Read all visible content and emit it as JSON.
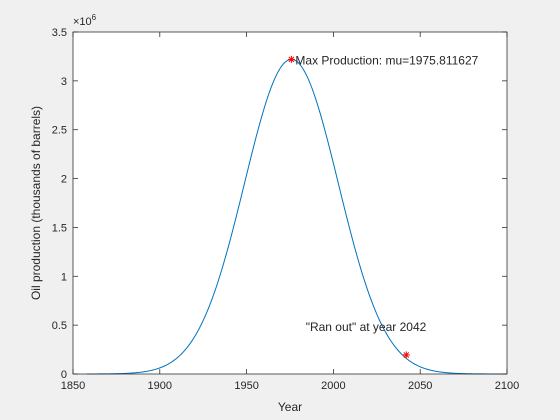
{
  "chart_data": {
    "type": "line",
    "xlabel": "Year",
    "ylabel": "Oil production (thousands of barrels)",
    "xlim": [
      1850,
      2100
    ],
    "ylim": [
      0,
      3500000
    ],
    "x_ticks": [
      1850,
      1900,
      1950,
      2000,
      2050,
      2100
    ],
    "x_tick_labels": [
      "1850",
      "1900",
      "1950",
      "2000",
      "2050",
      "2100"
    ],
    "y_ticks": [
      0,
      500000,
      1000000,
      1500000,
      2000000,
      2500000,
      3000000,
      3500000
    ],
    "y_tick_labels": [
      "0",
      "0.5",
      "1",
      "1.5",
      "2",
      "2.5",
      "3",
      "3.5"
    ],
    "y_exponent_base": "×10",
    "y_exponent_power": "6",
    "grid": false,
    "series": [
      {
        "color": "#0072bd",
        "curve": {
          "model": "gaussian",
          "peak_x": 1975.811627,
          "peak_y": 3220000,
          "sigma": 27,
          "x_start": 1858,
          "x_end": 2100
        }
      }
    ],
    "markers": [
      {
        "x": 1975.811627,
        "y": 3220000,
        "color": "#ff0000",
        "symbol": "asterisk"
      },
      {
        "x": 2042,
        "y": 195000,
        "color": "#ff0000",
        "symbol": "asterisk"
      }
    ],
    "annotations": [
      {
        "text": "Max Production: mu=1975.811627",
        "x": 1975.811627,
        "y": 3220000,
        "anchor": "start"
      },
      {
        "text": "\"Ran out\" at year 2042",
        "x": 2042,
        "y": 195000,
        "anchor": "end-above"
      }
    ],
    "colors": {
      "axes_background": "#ffffff",
      "figure_background": "#f0f0f0",
      "axis": "#262626"
    }
  }
}
